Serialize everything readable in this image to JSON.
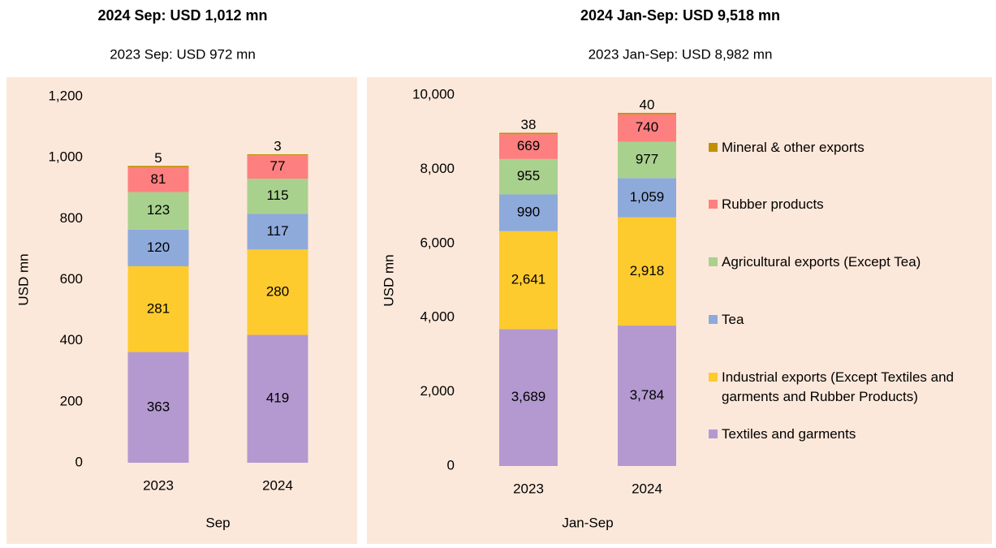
{
  "chart_data": [
    {
      "type": "bar",
      "stacked": true,
      "title": "2024 Sep: USD 1,012 mn",
      "subtitle": "2023 Sep: USD 972 mn",
      "ylabel": "USD mn",
      "xlabel": "Sep",
      "categories": [
        "2023",
        "2024"
      ],
      "ylim": [
        0,
        1200
      ],
      "yticks": [
        0,
        200,
        400,
        600,
        800,
        {
          "value": 1000,
          "label": "1,000"
        },
        {
          "value": 1200,
          "label": "1,200"
        }
      ],
      "series": [
        {
          "color": "#b399d0",
          "values": [
            363,
            419
          ]
        },
        {
          "color": "#fecb2e",
          "values": [
            281,
            280
          ]
        },
        {
          "color": "#8eaadb",
          "values": [
            120,
            117
          ]
        },
        {
          "color": "#a9d18e",
          "values": [
            123,
            115
          ]
        },
        {
          "color": "#fe7f7f",
          "values": [
            81,
            77
          ]
        },
        {
          "color": "#c09000",
          "values": [
            5,
            3
          ]
        }
      ]
    },
    {
      "type": "bar",
      "stacked": true,
      "title": "2024 Jan-Sep: USD 9,518 mn",
      "subtitle": "2023 Jan-Sep: USD 8,982 mn",
      "ylabel": "USD mn",
      "xlabel": "Jan-Sep",
      "categories": [
        "2023",
        "2024"
      ],
      "ylim": [
        0,
        10000
      ],
      "yticks": [
        0,
        {
          "value": 2000,
          "label": "2,000"
        },
        {
          "value": 4000,
          "label": "4,000"
        },
        {
          "value": 6000,
          "label": "6,000"
        },
        {
          "value": 8000,
          "label": "8,000"
        },
        {
          "value": 10000,
          "label": "10,000"
        }
      ],
      "legend": "right",
      "series": [
        {
          "name": "Textiles and garments",
          "color": "#b399d0",
          "values": [
            3689,
            3784
          ],
          "value_labels": [
            "3,689",
            "3,784"
          ]
        },
        {
          "name": "Industrial exports (Except Textiles and garments and Rubber Products)",
          "color": "#fecb2e",
          "values": [
            2641,
            2918
          ],
          "value_labels": [
            "2,641",
            "2,918"
          ]
        },
        {
          "name": "Tea",
          "color": "#8eaadb",
          "values": [
            990,
            1059
          ],
          "value_labels": [
            "990",
            "1,059"
          ]
        },
        {
          "name": "Agricultural exports (Except Tea)",
          "color": "#a9d18e",
          "values": [
            955,
            977
          ]
        },
        {
          "name": "Rubber products",
          "color": "#fe7f7f",
          "values": [
            669,
            740
          ]
        },
        {
          "name": "Mineral & other  exports",
          "color": "#c09000",
          "values": [
            38,
            40
          ]
        }
      ]
    }
  ]
}
